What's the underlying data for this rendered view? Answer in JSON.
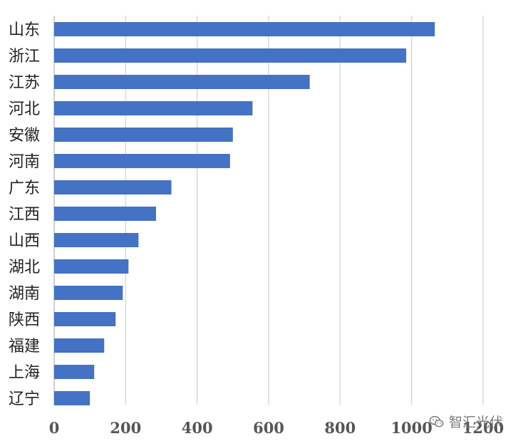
{
  "chart_data": {
    "type": "bar",
    "orientation": "horizontal",
    "categories": [
      "山东",
      "浙江",
      "江苏",
      "河北",
      "安徽",
      "河南",
      "广东",
      "江西",
      "山西",
      "湖北",
      "湖南",
      "陕西",
      "福建",
      "上海",
      "辽宁"
    ],
    "values": [
      1065,
      985,
      715,
      555,
      500,
      492,
      328,
      285,
      236,
      208,
      192,
      172,
      140,
      112,
      100
    ],
    "xlim": [
      0,
      1200
    ],
    "x_ticks": [
      "0",
      "200",
      "400",
      "600",
      "800",
      "1000",
      "1200"
    ],
    "grid": true,
    "bar_color": "#4472C4"
  },
  "watermark": {
    "text": "智汇光伏",
    "icon": "wechat-icon"
  }
}
